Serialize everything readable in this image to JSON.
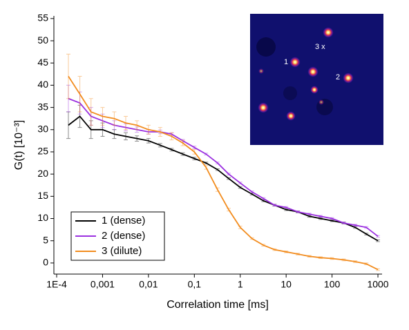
{
  "chart_data": {
    "type": "line",
    "xlabel": "Correlation time [ms]",
    "ylabel": "G(t) [10⁻³]",
    "xscale": "log",
    "x": [
      0.00018,
      0.00032,
      0.00056,
      0.001,
      0.0018,
      0.0032,
      0.0056,
      0.01,
      0.018,
      0.032,
      0.056,
      0.1,
      0.18,
      0.32,
      0.56,
      1,
      1.8,
      3.2,
      5.6,
      10,
      18,
      32,
      56,
      100,
      180,
      320,
      560,
      1000
    ],
    "series": [
      {
        "name": "1 (dense)",
        "color": "#000000",
        "values": [
          31,
          33,
          30,
          30,
          29,
          28.5,
          28,
          27.5,
          26.5,
          25.5,
          24.5,
          23.5,
          22.5,
          21,
          19,
          17,
          15.5,
          14,
          13,
          12,
          11.5,
          10.5,
          10,
          9.5,
          9,
          8,
          6.5,
          5
        ],
        "errors": [
          3,
          2.5,
          2,
          1.5,
          1,
          0.8,
          0.6,
          0.5,
          0.4,
          0.3,
          0.3,
          0.3,
          0.2,
          0.2,
          0.2,
          0.2,
          0.2,
          0.2,
          0.2,
          0.2,
          0.2,
          0.2,
          0.2,
          0.2,
          0.2,
          0.2,
          0.2,
          0.2
        ]
      },
      {
        "name": "2 (dense)",
        "color": "#9b30e0",
        "values": [
          37,
          36,
          33,
          32,
          31,
          30.5,
          30,
          29.5,
          29.5,
          29,
          27.5,
          26,
          24.5,
          22.5,
          20,
          18,
          16,
          14.5,
          13,
          12.5,
          11.5,
          11,
          10.5,
          10,
          9,
          8.5,
          8,
          6
        ],
        "errors": [
          3,
          2.5,
          2,
          1.5,
          1,
          0.8,
          0.6,
          0.5,
          0.4,
          0.3,
          0.3,
          0.3,
          0.2,
          0.2,
          0.2,
          0.2,
          0.2,
          0.2,
          0.2,
          0.2,
          0.2,
          0.2,
          0.2,
          0.2,
          0.2,
          0.2,
          0.2,
          0.2
        ]
      },
      {
        "name": "3 (dilute)",
        "color": "#f28c1e",
        "values": [
          42,
          38,
          34,
          33,
          32.5,
          31.5,
          31,
          30,
          29.5,
          28.5,
          27,
          25,
          21.5,
          16.5,
          12,
          8,
          5.5,
          4,
          3,
          2.5,
          2,
          1.5,
          1.2,
          1,
          0.7,
          0.3,
          -0.2,
          -1.5
        ],
        "errors": [
          5,
          4,
          3,
          2,
          1.5,
          1.5,
          1,
          1,
          1,
          0.8,
          0.6,
          0.5,
          0.4,
          0.4,
          0.3,
          0.3,
          0.2,
          0.2,
          0.2,
          0.2,
          0.2,
          0.2,
          0.2,
          0.2,
          0.2,
          0.2,
          0.2,
          0.2
        ]
      }
    ],
    "xlim": [
      8.7e-05,
      1230
    ],
    "ylim": [
      -2.5,
      55.6
    ],
    "xticks": [
      {
        "value": 0.0001,
        "label": "1E-4"
      },
      {
        "value": 0.001,
        "label": "0,001"
      },
      {
        "value": 0.01,
        "label": "0,01"
      },
      {
        "value": 0.1,
        "label": "0,1"
      },
      1,
      10,
      100,
      1000
    ],
    "yticks": [
      0,
      5,
      10,
      15,
      20,
      25,
      30,
      35,
      40,
      45,
      50,
      55
    ],
    "legend": "lower left"
  },
  "inset": {
    "labels": [
      "1",
      "2",
      "3 x"
    ]
  }
}
